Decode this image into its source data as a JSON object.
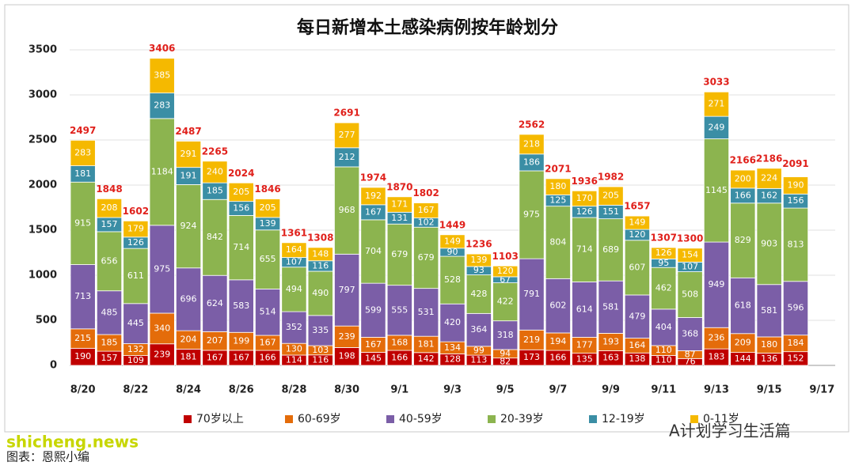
{
  "chart_data": {
    "type": "stacked_bar",
    "title": "每日新增本土感染病例按年龄划分",
    "categories": [
      "8/20",
      null,
      "8/22",
      null,
      "8/24",
      null,
      "8/26",
      null,
      "8/28",
      null,
      "8/30",
      null,
      "9/1",
      null,
      "9/3",
      null,
      "9/5",
      null,
      "9/7",
      null,
      "9/9",
      null,
      "9/11",
      null,
      "9/13",
      null,
      "9/15",
      null,
      "9/17"
    ],
    "series": [
      {
        "name": "70岁以上",
        "color": "#c00000",
        "values": [
          190,
          157,
          109,
          239,
          181,
          167,
          167,
          166,
          114,
          116,
          198,
          145,
          166,
          142,
          128,
          113,
          82,
          173,
          166,
          135,
          163,
          138,
          110,
          76,
          183,
          144,
          136,
          152,
          null
        ]
      },
      {
        "name": "60-69岁",
        "color": "#e46c0a",
        "values": [
          215,
          185,
          132,
          340,
          204,
          207,
          199,
          167,
          130,
          103,
          239,
          167,
          168,
          181,
          134,
          99,
          94,
          219,
          194,
          177,
          193,
          164,
          110,
          87,
          236,
          209,
          180,
          184,
          null
        ]
      },
      {
        "name": "40-59岁",
        "color": "#7b5ea7",
        "values": [
          713,
          485,
          445,
          975,
          696,
          624,
          583,
          514,
          352,
          335,
          797,
          599,
          555,
          531,
          420,
          364,
          318,
          791,
          602,
          614,
          581,
          479,
          404,
          368,
          949,
          618,
          581,
          596,
          null
        ]
      },
      {
        "name": "20-39岁",
        "color": "#8cb44f",
        "values": [
          915,
          656,
          611,
          1184,
          924,
          842,
          714,
          655,
          494,
          490,
          968,
          704,
          679,
          679,
          528,
          428,
          422,
          975,
          804,
          714,
          689,
          607,
          462,
          508,
          1145,
          829,
          903,
          813,
          null
        ]
      },
      {
        "name": "12-19岁",
        "color": "#3b8ea5",
        "values": [
          181,
          157,
          126,
          283,
          191,
          185,
          156,
          139,
          107,
          116,
          212,
          167,
          131,
          102,
          90,
          93,
          67,
          186,
          125,
          126,
          151,
          120,
          95,
          107,
          249,
          166,
          162,
          156,
          null
        ]
      },
      {
        "name": "0-11岁",
        "color": "#f5b900",
        "values": [
          283,
          208,
          179,
          385,
          291,
          240,
          205,
          205,
          164,
          148,
          277,
          192,
          171,
          167,
          149,
          139,
          120,
          218,
          180,
          170,
          205,
          149,
          126,
          154,
          271,
          200,
          224,
          190,
          null
        ]
      }
    ],
    "totals": [
      2497,
      1848,
      1602,
      3406,
      2487,
      2265,
      2024,
      1846,
      1361,
      1308,
      2691,
      1974,
      1870,
      1802,
      1449,
      1236,
      1103,
      2562,
      2071,
      1936,
      1982,
      1657,
      1307,
      1300,
      3033,
      2166,
      2186,
      2091,
      null
    ],
    "ylim": [
      0,
      3500
    ],
    "yticks": [
      0,
      500,
      1000,
      1500,
      2000,
      2500,
      3000,
      3500
    ],
    "grid": true,
    "legend": "bottom"
  },
  "source": "图表：恩熙小编",
  "watermarks": [
    "A计划学习生活篇",
    "shicheng.news"
  ]
}
